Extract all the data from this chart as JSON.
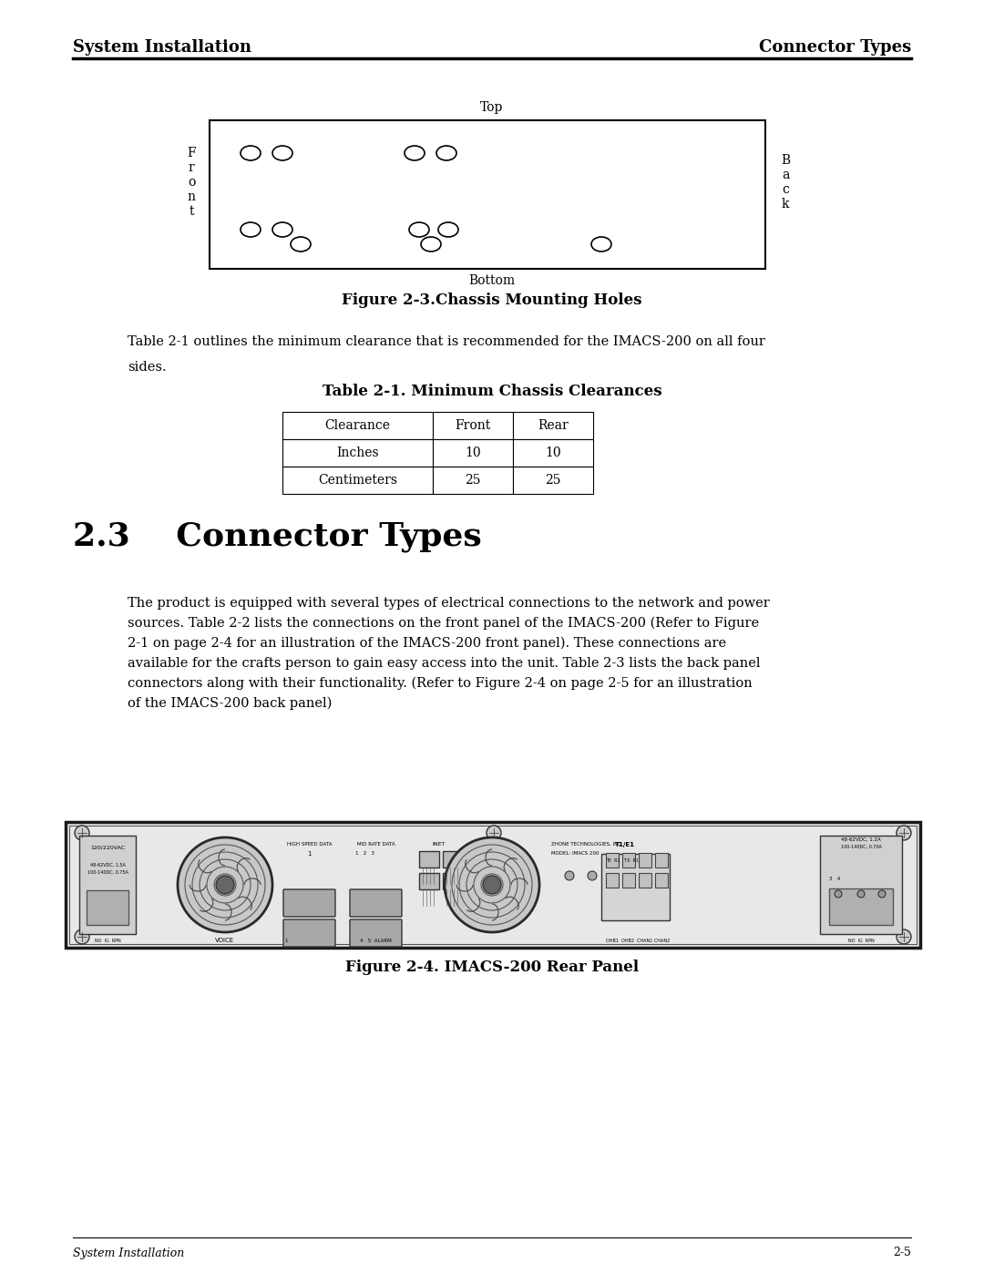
{
  "bg_color": "#ffffff",
  "header_left": "System Installation",
  "header_right": "Connector Types",
  "figure_caption": "Figure 2-3.Chassis Mounting Holes",
  "body_text1_line1": "Table 2-1 outlines the minimum clearance that is recommended for the IMACS-200 on all four",
  "body_text1_line2": "sides.",
  "table_title": "Table 2-1. Minimum Chassis Clearances",
  "table_headers": [
    "Clearance",
    "Front",
    "Rear"
  ],
  "table_rows": [
    [
      "Inches",
      "10",
      "10"
    ],
    [
      "Centimeters",
      "25",
      "25"
    ]
  ],
  "section_number": "2.3",
  "section_title": "Connector Types",
  "section_body": "The product is equipped with several types of electrical connections to the network and power\nsources. Table 2-2 lists the connections on the front panel of the IMACS-200 (Refer to Figure\n2-1 on page 2-4 for an illustration of the IMACS-200 front panel). These connections are\navailable for the crafts person to gain easy access into the unit. Table 2-3 lists the back panel\nconnectors along with their functionality. (Refer to Figure 2-4 on page 2-5 for an illustration\nof the IMACS-200 back panel)",
  "figure2_caption": "Figure 2-4. IMACS-200 Rear Panel",
  "footer_left": "System Installation",
  "footer_right": "2-5",
  "top_label": "Top",
  "bottom_label": "Bottom",
  "front_label": "F\nr\no\nn\nt",
  "back_label": "B\na\nc\nk"
}
